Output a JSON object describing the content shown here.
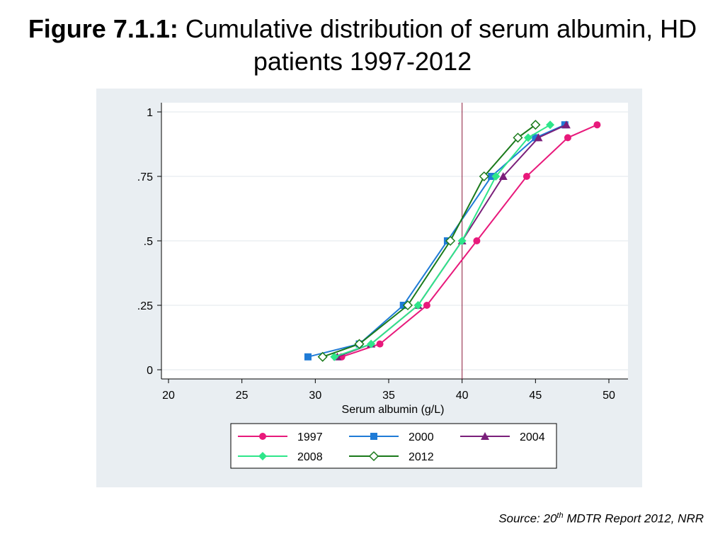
{
  "title": {
    "bold": "Figure 7.1.1:",
    "rest": "Cumulative distribution of serum albumin, HD patients 1997-2012"
  },
  "source": {
    "prefix": "Source: 20",
    "sup": "th",
    "suffix": " MDTR Report 2012, NRR"
  },
  "chart_data": {
    "type": "line",
    "xlabel": "Serum albumin (g/L)",
    "ylabel": "",
    "xlim": [
      20,
      50
    ],
    "ylim": [
      0,
      1
    ],
    "x_ticks": [
      20,
      25,
      30,
      35,
      40,
      45,
      50
    ],
    "x_tick_labels": [
      "20",
      "25",
      "30",
      "35",
      "40",
      "45",
      "50"
    ],
    "y_ticks": [
      0,
      0.25,
      0.5,
      0.75,
      1
    ],
    "y_tick_labels": [
      "0",
      ".25",
      ".5",
      ".75",
      "1"
    ],
    "grid": true,
    "reference_line_x": 40,
    "legend_position": "bottom",
    "series": [
      {
        "name": "1997",
        "color": "#e8197b",
        "marker": "circle",
        "x": [
          31.8,
          34.4,
          37.6,
          41.0,
          44.4,
          47.2,
          49.2
        ],
        "y": [
          0.05,
          0.1,
          0.25,
          0.5,
          0.75,
          0.9,
          0.95
        ]
      },
      {
        "name": "2000",
        "color": "#1f7bd6",
        "marker": "square",
        "x": [
          29.5,
          33.0,
          36.0,
          39.0,
          42.0,
          45.0,
          47.0
        ],
        "y": [
          0.05,
          0.1,
          0.25,
          0.5,
          0.75,
          0.9,
          0.95
        ]
      },
      {
        "name": "2004",
        "color": "#7a1f7a",
        "marker": "triangle",
        "x": [
          31.5,
          33.8,
          37.0,
          40.0,
          42.8,
          45.2,
          47.1
        ],
        "y": [
          0.05,
          0.1,
          0.25,
          0.5,
          0.75,
          0.9,
          0.95
        ]
      },
      {
        "name": "2008",
        "color": "#2ee68a",
        "marker": "diamond",
        "x": [
          31.3,
          33.8,
          37.0,
          40.0,
          42.3,
          44.5,
          46.0
        ],
        "y": [
          0.05,
          0.1,
          0.25,
          0.5,
          0.75,
          0.9,
          0.95
        ]
      },
      {
        "name": "2012",
        "color": "#1a7a1a",
        "marker": "diamond-open",
        "x": [
          30.5,
          33.0,
          36.3,
          39.2,
          41.5,
          43.8,
          45.0
        ],
        "y": [
          0.05,
          0.1,
          0.25,
          0.5,
          0.75,
          0.9,
          0.95
        ]
      }
    ]
  }
}
